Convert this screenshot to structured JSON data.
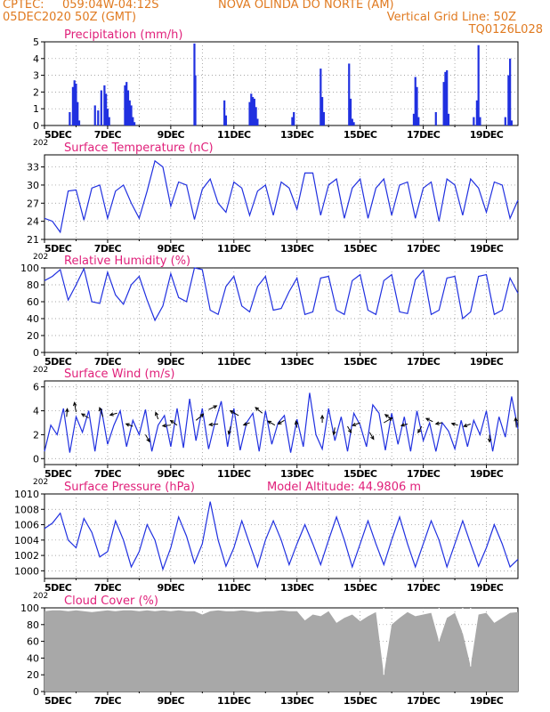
{
  "header": {
    "source": "CPTEC:",
    "coords": "059:04W-04:12S",
    "location": "NOVA OLINDA DO NORTE (AM)",
    "datetime": "05DEC2020 50Z (GMT)",
    "grid_line": "Vertical Grid Line: 50Z",
    "code": "TQ0126L028"
  },
  "colors": {
    "header": "#e07a20",
    "title": "#e0207a",
    "series": "#2030e0",
    "bars": "#2030e0",
    "cloud": "#a8a8a8",
    "wind_arrow": "#000000"
  },
  "x_ticks": [
    "5DEC",
    "7DEC",
    "9DEC",
    "11DEC",
    "13DEC",
    "15DEC",
    "17DEC",
    "19DEC"
  ],
  "year_fragment": "202",
  "chart_data": [
    {
      "id": "precip",
      "type": "bar",
      "title": "Precipitation (mm/h)",
      "ylim": [
        0,
        5
      ],
      "yticks": [
        0,
        1,
        2,
        3,
        4,
        5
      ],
      "x_range_days": [
        5,
        20
      ],
      "x": [
        5.8,
        5.9,
        5.95,
        6.0,
        6.05,
        6.1,
        6.6,
        6.7,
        6.8,
        6.9,
        6.95,
        7.0,
        7.05,
        7.55,
        7.6,
        7.65,
        7.7,
        7.75,
        7.8,
        7.85,
        9.75,
        9.78,
        10.7,
        10.75,
        11.5,
        11.55,
        11.6,
        11.65,
        11.7,
        11.75,
        12.85,
        12.9,
        13.75,
        13.8,
        13.85,
        14.65,
        14.7,
        14.75,
        14.8,
        16.7,
        16.75,
        16.8,
        16.85,
        17.4,
        17.65,
        17.7,
        17.75,
        17.8,
        18.6,
        18.7,
        18.75,
        18.8,
        19.6,
        19.7,
        19.75,
        19.8
      ],
      "values": [
        0.8,
        2.3,
        2.7,
        2.5,
        1.4,
        0.3,
        1.2,
        0.9,
        2.1,
        2.4,
        1.9,
        1.0,
        0.5,
        2.4,
        2.6,
        2.1,
        1.5,
        1.2,
        0.5,
        0.2,
        4.9,
        3.0,
        1.5,
        0.6,
        1.4,
        1.9,
        1.7,
        1.6,
        1.1,
        0.4,
        0.5,
        0.8,
        3.4,
        1.7,
        0.8,
        3.7,
        1.6,
        0.4,
        0.2,
        0.7,
        2.9,
        2.3,
        0.5,
        0.8,
        2.6,
        3.2,
        3.3,
        0.7,
        0.5,
        1.5,
        4.8,
        0.5,
        0.5,
        3.0,
        4.0,
        0.3
      ]
    },
    {
      "id": "temp",
      "type": "line",
      "title": "Surface Temperature (nC)",
      "ylim": [
        21,
        35
      ],
      "yticks": [
        21,
        24,
        27,
        30,
        33
      ],
      "x_range_days": [
        5,
        20
      ],
      "x": [
        5.0,
        5.25,
        5.5,
        5.75,
        6.0,
        6.25,
        6.5,
        6.75,
        7.0,
        7.25,
        7.5,
        7.75,
        8.0,
        8.25,
        8.5,
        8.75,
        9.0,
        9.25,
        9.5,
        9.75,
        10.0,
        10.25,
        10.5,
        10.75,
        11.0,
        11.25,
        11.5,
        11.75,
        12.0,
        12.25,
        12.5,
        12.75,
        13.0,
        13.25,
        13.5,
        13.75,
        14.0,
        14.25,
        14.5,
        14.75,
        15.0,
        15.25,
        15.5,
        15.75,
        16.0,
        16.25,
        16.5,
        16.75,
        17.0,
        17.25,
        17.5,
        17.75,
        18.0,
        18.25,
        18.5,
        18.75,
        19.0,
        19.25,
        19.5,
        19.75,
        20.0
      ],
      "values": [
        24.5,
        24.0,
        22.2,
        29.0,
        29.2,
        24.2,
        29.5,
        30.0,
        24.5,
        29.0,
        30.0,
        27.0,
        24.5,
        29.0,
        34.0,
        33.0,
        26.5,
        30.5,
        30.0,
        24.3,
        29.3,
        31.0,
        27.0,
        25.5,
        30.5,
        29.5,
        25.0,
        29.0,
        30.0,
        25.0,
        30.5,
        29.5,
        26.0,
        32.0,
        32.0,
        25.0,
        30.0,
        31.0,
        24.5,
        29.5,
        31.0,
        24.5,
        29.5,
        31.0,
        25.0,
        30.0,
        30.5,
        24.5,
        29.5,
        30.5,
        24.0,
        31.0,
        30.0,
        25.0,
        31.0,
        29.5,
        25.5,
        30.5,
        30.0,
        24.5,
        27.5
      ]
    },
    {
      "id": "rh",
      "type": "line",
      "title": "Relative Humidity (%)",
      "ylim": [
        0,
        100
      ],
      "yticks": [
        0,
        20,
        40,
        60,
        80,
        100
      ],
      "x_range_days": [
        5,
        20
      ],
      "x": [
        5.0,
        5.25,
        5.5,
        5.75,
        6.0,
        6.25,
        6.5,
        6.75,
        7.0,
        7.25,
        7.5,
        7.75,
        8.0,
        8.25,
        8.5,
        8.75,
        9.0,
        9.25,
        9.5,
        9.75,
        10.0,
        10.25,
        10.5,
        10.75,
        11.0,
        11.25,
        11.5,
        11.75,
        12.0,
        12.25,
        12.5,
        12.75,
        13.0,
        13.25,
        13.5,
        13.75,
        14.0,
        14.25,
        14.5,
        14.75,
        15.0,
        15.25,
        15.5,
        15.75,
        16.0,
        16.25,
        16.5,
        16.75,
        17.0,
        17.25,
        17.5,
        17.75,
        18.0,
        18.25,
        18.5,
        18.75,
        19.0,
        19.25,
        19.5,
        19.75,
        20.0
      ],
      "values": [
        85,
        90,
        98,
        62,
        80,
        99,
        60,
        58,
        95,
        68,
        57,
        80,
        90,
        62,
        38,
        55,
        93,
        65,
        60,
        100,
        98,
        50,
        45,
        78,
        90,
        55,
        48,
        78,
        90,
        50,
        52,
        72,
        88,
        45,
        48,
        88,
        90,
        50,
        45,
        85,
        92,
        50,
        45,
        85,
        92,
        48,
        46,
        86,
        97,
        45,
        50,
        88,
        90,
        40,
        48,
        90,
        92,
        45,
        50,
        88,
        70
      ]
    },
    {
      "id": "wind",
      "type": "line",
      "title": "Surface Wind (m/s)",
      "ylim": [
        -0.5,
        6.5
      ],
      "yticks": [
        0,
        2,
        4,
        6
      ],
      "x_range_days": [
        5,
        20
      ],
      "x": [
        5.0,
        5.2,
        5.4,
        5.6,
        5.8,
        6.0,
        6.2,
        6.4,
        6.6,
        6.8,
        7.0,
        7.2,
        7.4,
        7.6,
        7.8,
        8.0,
        8.2,
        8.4,
        8.6,
        8.8,
        9.0,
        9.2,
        9.4,
        9.6,
        9.8,
        10.0,
        10.2,
        10.4,
        10.6,
        10.8,
        11.0,
        11.2,
        11.4,
        11.6,
        11.8,
        12.0,
        12.2,
        12.4,
        12.6,
        12.8,
        13.0,
        13.2,
        13.4,
        13.6,
        13.8,
        14.0,
        14.2,
        14.4,
        14.6,
        14.8,
        15.0,
        15.2,
        15.4,
        15.6,
        15.8,
        16.0,
        16.2,
        16.4,
        16.6,
        16.8,
        17.0,
        17.2,
        17.4,
        17.6,
        17.8,
        18.0,
        18.2,
        18.4,
        18.6,
        18.8,
        19.0,
        19.2,
        19.4,
        19.6,
        19.8,
        20.0
      ],
      "values": [
        0.6,
        2.8,
        2.0,
        4.2,
        0.5,
        3.5,
        2.2,
        4.0,
        0.6,
        4.2,
        1.2,
        2.8,
        4.0,
        1.0,
        3.2,
        2.0,
        4.1,
        0.6,
        2.8,
        3.6,
        1.0,
        4.2,
        0.9,
        5.0,
        1.5,
        4.2,
        0.8,
        3.0,
        4.8,
        1.0,
        4.2,
        0.7,
        3.0,
        3.8,
        0.6,
        4.0,
        1.2,
        3.0,
        3.6,
        0.5,
        3.3,
        1.0,
        5.5,
        2.0,
        0.8,
        4.2,
        1.5,
        3.5,
        0.6,
        3.8,
        2.8,
        1.0,
        4.5,
        3.8,
        0.7,
        3.8,
        1.2,
        3.5,
        0.6,
        4.0,
        1.5,
        3.0,
        0.6,
        3.0,
        2.3,
        0.8,
        3.2,
        1.0,
        3.2,
        2.0,
        4.0,
        0.6,
        3.5,
        1.8,
        5.2,
        2.5
      ],
      "arrows": [
        {
          "day": 5.7,
          "value": 3.5,
          "dir_deg": 85,
          "len": 1.0
        },
        {
          "day": 6.0,
          "value": 3.9,
          "dir_deg": 100,
          "len": 1.2
        },
        {
          "day": 6.4,
          "value": 3.4,
          "dir_deg": 150,
          "len": 1.0
        },
        {
          "day": 6.85,
          "value": 3.5,
          "dir_deg": 110,
          "len": 1.2
        },
        {
          "day": 7.3,
          "value": 3.8,
          "dir_deg": 195,
          "len": 0.9
        },
        {
          "day": 7.8,
          "value": 2.7,
          "dir_deg": 160,
          "len": 0.9
        },
        {
          "day": 8.2,
          "value": 2.0,
          "dir_deg": 300,
          "len": 1.0
        },
        {
          "day": 8.6,
          "value": 3.3,
          "dir_deg": 110,
          "len": 0.9
        },
        {
          "day": 9.0,
          "value": 2.8,
          "dir_deg": 185,
          "len": 1.0
        },
        {
          "day": 9.2,
          "value": 2.8,
          "dir_deg": 145,
          "len": 1.0
        },
        {
          "day": 9.8,
          "value": 3.2,
          "dir_deg": 40,
          "len": 1.2
        },
        {
          "day": 10.2,
          "value": 4.1,
          "dir_deg": 25,
          "len": 1.1
        },
        {
          "day": 10.5,
          "value": 2.9,
          "dir_deg": 185,
          "len": 1.1
        },
        {
          "day": 10.9,
          "value": 2.7,
          "dir_deg": 255,
          "len": 1.0
        },
        {
          "day": 11.15,
          "value": 3.6,
          "dir_deg": 150,
          "len": 1.2
        },
        {
          "day": 11.5,
          "value": 3.0,
          "dir_deg": 200,
          "len": 0.8
        },
        {
          "day": 11.9,
          "value": 3.8,
          "dir_deg": 140,
          "len": 1.1
        },
        {
          "day": 12.3,
          "value": 2.8,
          "dir_deg": 150,
          "len": 1.0
        },
        {
          "day": 12.6,
          "value": 3.2,
          "dir_deg": 210,
          "len": 0.9
        },
        {
          "day": 13.0,
          "value": 2.6,
          "dir_deg": 100,
          "len": 0.8
        },
        {
          "day": 13.8,
          "value": 3.0,
          "dir_deg": 90,
          "len": 0.9
        },
        {
          "day": 14.2,
          "value": 2.6,
          "dir_deg": 260,
          "len": 0.9
        },
        {
          "day": 14.6,
          "value": 2.7,
          "dir_deg": 300,
          "len": 0.9
        },
        {
          "day": 15.0,
          "value": 3.0,
          "dir_deg": 200,
          "len": 1.0
        },
        {
          "day": 15.3,
          "value": 2.2,
          "dir_deg": 300,
          "len": 1.0
        },
        {
          "day": 15.75,
          "value": 3.0,
          "dir_deg": 30,
          "len": 1.2
        },
        {
          "day": 16.0,
          "value": 3.3,
          "dir_deg": 145,
          "len": 1.0
        },
        {
          "day": 16.5,
          "value": 2.9,
          "dir_deg": 195,
          "len": 0.8
        },
        {
          "day": 16.95,
          "value": 2.7,
          "dir_deg": 240,
          "len": 0.9
        },
        {
          "day": 17.3,
          "value": 3.1,
          "dir_deg": 155,
          "len": 0.9
        },
        {
          "day": 17.6,
          "value": 3.0,
          "dir_deg": 190,
          "len": 0.8
        },
        {
          "day": 18.1,
          "value": 2.8,
          "dir_deg": 165,
          "len": 0.8
        },
        {
          "day": 18.5,
          "value": 2.9,
          "dir_deg": 200,
          "len": 0.9
        },
        {
          "day": 19.1,
          "value": 2.0,
          "dir_deg": 270,
          "len": 0.9
        },
        {
          "day": 19.95,
          "value": 2.6,
          "dir_deg": 95,
          "len": 1.2
        }
      ]
    },
    {
      "id": "pres",
      "type": "line",
      "title": "Surface Pressure (hPa)",
      "annotation": "Model Altitude: 44.9806 m",
      "ylim": [
        999,
        1010
      ],
      "yticks": [
        1000,
        1002,
        1004,
        1006,
        1008,
        1010
      ],
      "x_range_days": [
        5,
        20
      ],
      "x": [
        5.0,
        5.25,
        5.5,
        5.75,
        6.0,
        6.25,
        6.5,
        6.75,
        7.0,
        7.25,
        7.5,
        7.75,
        8.0,
        8.25,
        8.5,
        8.75,
        9.0,
        9.25,
        9.5,
        9.75,
        10.0,
        10.25,
        10.5,
        10.75,
        11.0,
        11.25,
        11.5,
        11.75,
        12.0,
        12.25,
        12.5,
        12.75,
        13.0,
        13.25,
        13.5,
        13.75,
        14.0,
        14.25,
        14.5,
        14.75,
        15.0,
        15.25,
        15.5,
        15.75,
        16.0,
        16.25,
        16.5,
        16.75,
        17.0,
        17.25,
        17.5,
        17.75,
        18.0,
        18.25,
        18.5,
        18.75,
        19.0,
        19.25,
        19.5,
        19.75,
        20.0
      ],
      "values": [
        1005.5,
        1006.2,
        1007.5,
        1004.0,
        1003.0,
        1006.8,
        1005.0,
        1001.8,
        1002.5,
        1006.5,
        1004.0,
        1000.5,
        1002.5,
        1006.0,
        1004.0,
        1000.2,
        1003.0,
        1007.0,
        1004.5,
        1001.0,
        1003.5,
        1009.0,
        1004.0,
        1000.6,
        1003.0,
        1006.5,
        1003.5,
        1000.5,
        1004.0,
        1006.5,
        1004.0,
        1000.8,
        1003.5,
        1006.0,
        1003.5,
        1000.8,
        1004.0,
        1007.0,
        1004.0,
        1000.5,
        1003.5,
        1006.5,
        1003.5,
        1000.8,
        1004.0,
        1007.0,
        1003.5,
        1000.5,
        1003.5,
        1006.5,
        1004.0,
        1000.5,
        1003.5,
        1006.5,
        1003.5,
        1000.6,
        1003.0,
        1006.0,
        1003.5,
        1000.5,
        1001.5
      ]
    },
    {
      "id": "cloud",
      "type": "area",
      "title": "Cloud Cover (%)",
      "ylim": [
        0,
        100
      ],
      "yticks": [
        0,
        20,
        40,
        60,
        80,
        100
      ],
      "x_range_days": [
        5,
        20
      ],
      "x": [
        5.0,
        5.25,
        5.5,
        5.75,
        6.0,
        6.25,
        6.5,
        6.75,
        7.0,
        7.25,
        7.5,
        7.75,
        8.0,
        8.25,
        8.5,
        8.75,
        9.0,
        9.25,
        9.5,
        9.75,
        10.0,
        10.25,
        10.5,
        10.75,
        11.0,
        11.25,
        11.5,
        11.75,
        12.0,
        12.25,
        12.5,
        12.75,
        13.0,
        13.25,
        13.5,
        13.75,
        14.0,
        14.25,
        14.5,
        14.75,
        15.0,
        15.25,
        15.5,
        15.75,
        16.0,
        16.25,
        16.5,
        16.75,
        17.0,
        17.25,
        17.5,
        17.75,
        18.0,
        18.25,
        18.5,
        18.75,
        19.0,
        19.25,
        19.5,
        19.75,
        20.0
      ],
      "values": [
        96,
        97,
        97,
        96,
        97,
        96,
        95,
        96,
        97,
        96,
        97,
        97,
        96,
        97,
        96,
        97,
        96,
        97,
        96,
        96,
        92,
        96,
        97,
        96,
        96,
        97,
        96,
        95,
        96,
        96,
        97,
        96,
        96,
        85,
        92,
        90,
        96,
        82,
        88,
        92,
        84,
        90,
        95,
        20,
        80,
        88,
        95,
        90,
        92,
        94,
        60,
        88,
        94,
        70,
        30,
        92,
        94,
        82,
        88,
        94,
        95
      ]
    }
  ]
}
